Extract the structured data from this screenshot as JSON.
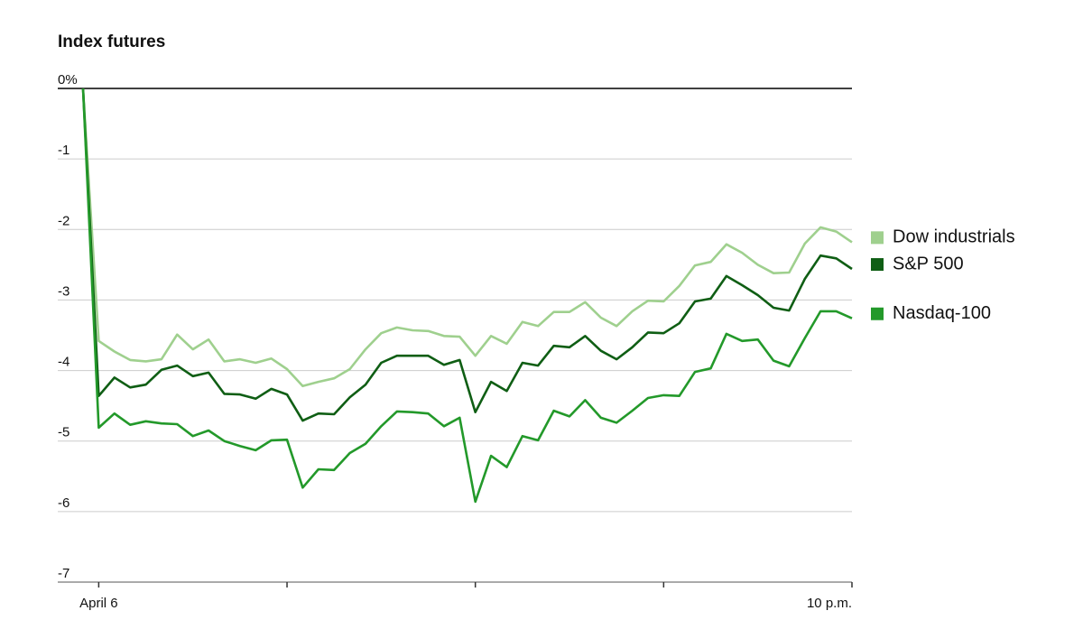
{
  "chart_data": {
    "type": "line",
    "title": "Index futures",
    "categories": [
      null,
      "April 6",
      null,
      null,
      null,
      null,
      null,
      null,
      null,
      null,
      null,
      null,
      null,
      null,
      null,
      null,
      null,
      null,
      null,
      null,
      null,
      null,
      null,
      null,
      null,
      null,
      null,
      null,
      null,
      null,
      null,
      null,
      null,
      null,
      null,
      null,
      null,
      null,
      null,
      null,
      null,
      null,
      null,
      null,
      null,
      null,
      null,
      null,
      null,
      "10 p.m."
    ],
    "series": [
      {
        "name": "Dow industrials",
        "color": "#9fd08e",
        "values": [
          0,
          -3.58,
          -3.73,
          -3.85,
          -3.87,
          -3.84,
          -3.49,
          -3.7,
          -3.56,
          -3.87,
          -3.84,
          -3.89,
          -3.83,
          -3.98,
          -4.22,
          -4.16,
          -4.11,
          -3.98,
          -3.7,
          -3.47,
          -3.39,
          -3.43,
          -3.44,
          -3.51,
          -3.52,
          -3.79,
          -3.51,
          -3.62,
          -3.31,
          -3.37,
          -3.17,
          -3.17,
          -3.03,
          -3.25,
          -3.37,
          -3.16,
          -3.01,
          -3.02,
          -2.8,
          -2.51,
          -2.46,
          -2.21,
          -2.33,
          -2.5,
          -2.62,
          -2.61,
          -2.2,
          -1.97,
          -2.03,
          -2.18
        ]
      },
      {
        "name": "S&P 500",
        "color": "#0f5e14",
        "values": [
          0,
          -4.36,
          -4.1,
          -4.24,
          -4.2,
          -3.99,
          -3.93,
          -4.08,
          -4.03,
          -4.33,
          -4.34,
          -4.4,
          -4.26,
          -4.34,
          -4.71,
          -4.61,
          -4.62,
          -4.38,
          -4.2,
          -3.89,
          -3.79,
          -3.79,
          -3.79,
          -3.92,
          -3.85,
          -4.59,
          -4.16,
          -4.29,
          -3.89,
          -3.93,
          -3.65,
          -3.67,
          -3.51,
          -3.72,
          -3.84,
          -3.67,
          -3.46,
          -3.47,
          -3.33,
          -3.02,
          -2.98,
          -2.66,
          -2.79,
          -2.93,
          -3.11,
          -3.15,
          -2.7,
          -2.37,
          -2.41,
          -2.56
        ]
      },
      {
        "name": "Nasdaq-100",
        "color": "#23992a",
        "values": [
          0,
          -4.81,
          -4.61,
          -4.77,
          -4.72,
          -4.75,
          -4.76,
          -4.93,
          -4.85,
          -5.0,
          -5.07,
          -5.13,
          -4.99,
          -4.98,
          -5.66,
          -5.4,
          -5.41,
          -5.17,
          -5.04,
          -4.79,
          -4.58,
          -4.59,
          -4.61,
          -4.79,
          -4.67,
          -5.86,
          -5.21,
          -5.37,
          -4.93,
          -4.99,
          -4.57,
          -4.65,
          -4.42,
          -4.67,
          -4.74,
          -4.57,
          -4.39,
          -4.35,
          -4.36,
          -4.02,
          -3.97,
          -3.48,
          -3.58,
          -3.56,
          -3.86,
          -3.94,
          -3.54,
          -3.16,
          -3.16,
          -3.26
        ]
      }
    ],
    "ylim": [
      -7,
      0
    ],
    "yticks": [
      {
        "value": 0,
        "label": "0%"
      },
      -1,
      -2,
      -3,
      -4,
      -5,
      -6,
      -7
    ],
    "grid": true
  }
}
